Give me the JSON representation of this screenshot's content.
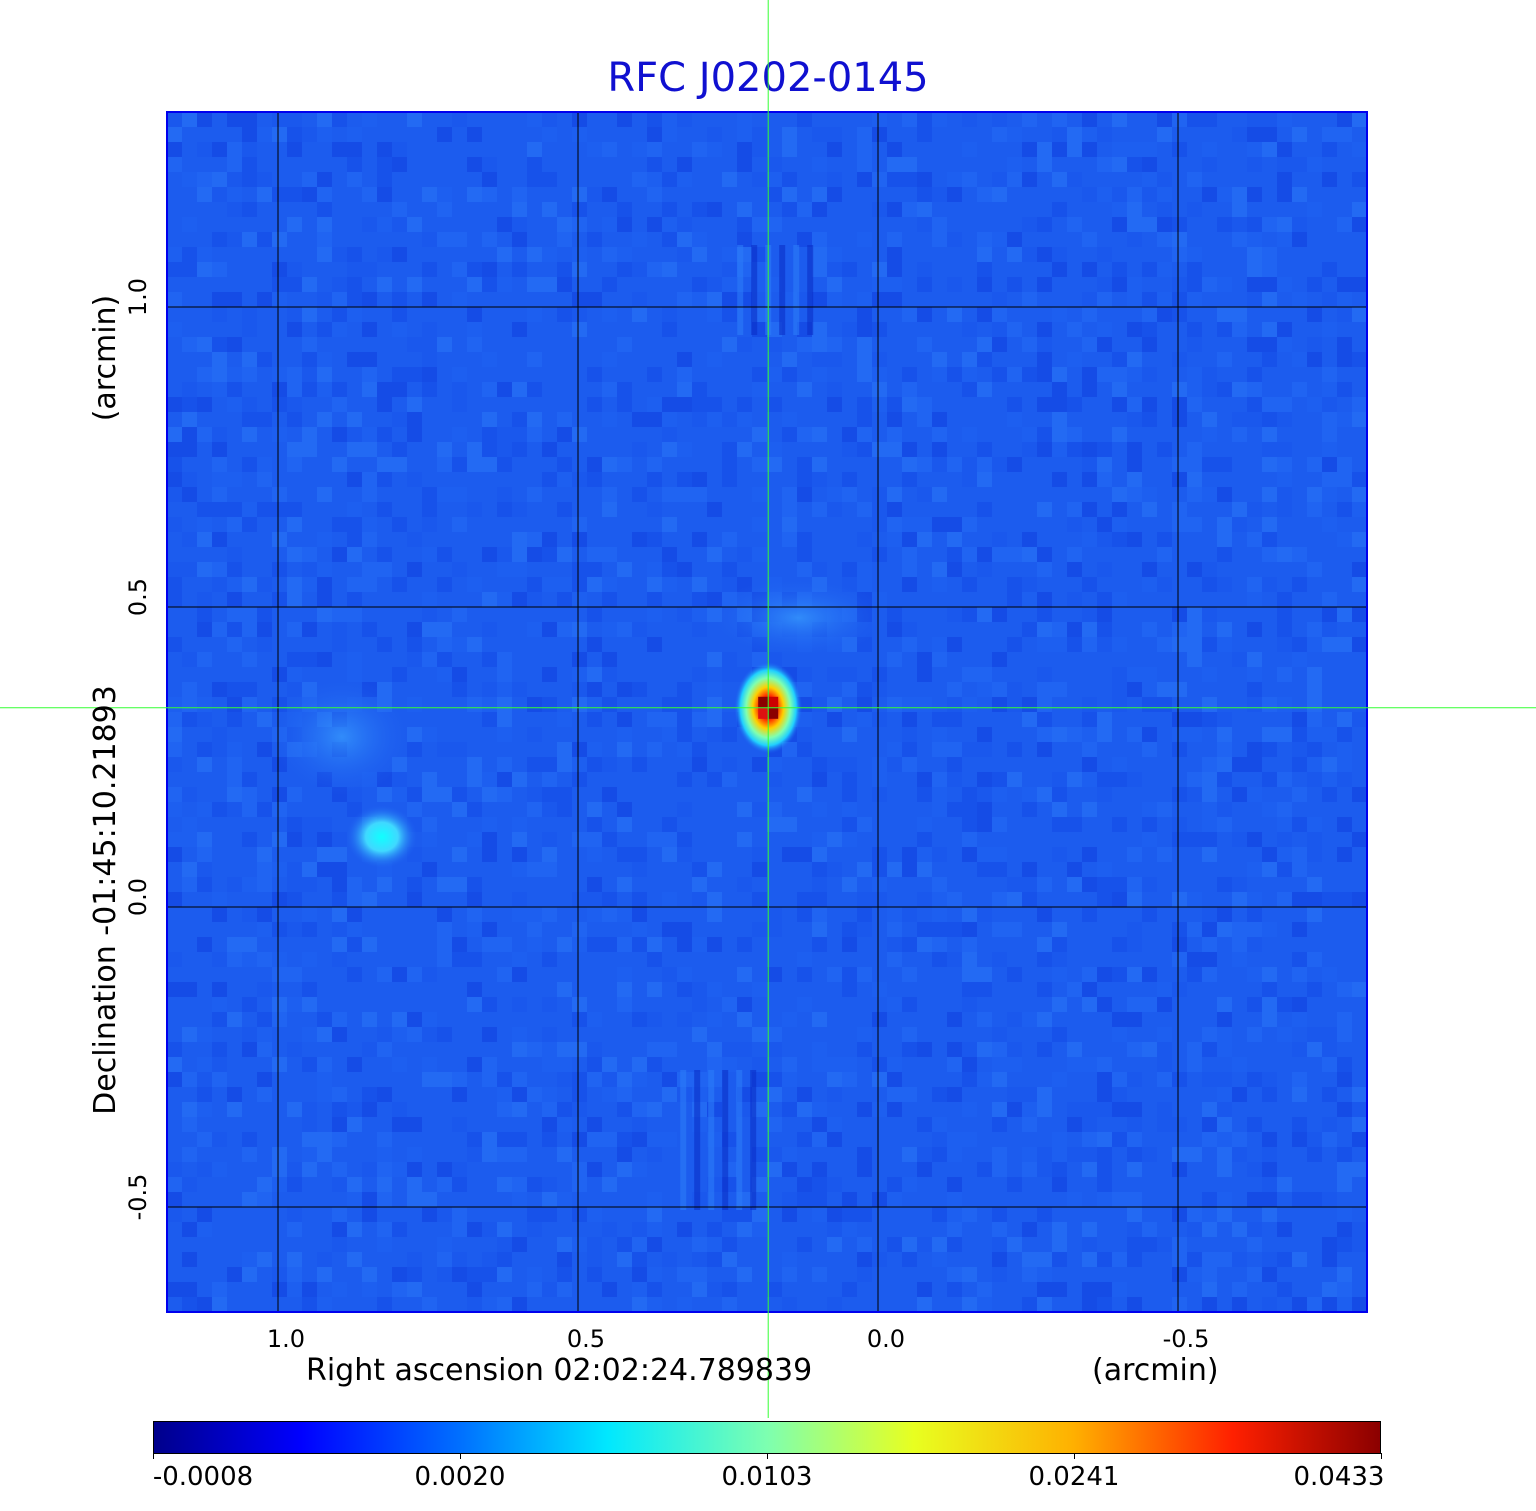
{
  "colors": {
    "title": "#1010d0",
    "crosshair": "#33ff33",
    "grid": "#000000",
    "frame": "#0000ee"
  },
  "chart_data": {
    "type": "heatmap",
    "title": "RFC J0202-0145",
    "xlabel": "Right ascension  02:02:24.789839",
    "xunit": "(arcmin)",
    "ylabel": "Declination  -01:45:10.21893",
    "yunit": "(arcmin)",
    "xlim": [
      1.185,
      -0.815
    ],
    "ylim": [
      -0.675,
      1.325
    ],
    "xticks": [
      1.0,
      0.5,
      0.0,
      -0.5
    ],
    "xtick_labels": [
      "1.0",
      "0.5",
      "0.0",
      "-0.5"
    ],
    "yticks": [
      -0.5,
      0.0,
      0.5,
      1.0
    ],
    "ytick_labels": [
      "-0.5",
      "0.0",
      "0.5",
      "1.0"
    ],
    "grid": true,
    "crosshair": {
      "x": 0.183,
      "y": 0.332
    },
    "colormap": "jet",
    "colorbar_ticks": [
      "-0.0008",
      "0.0020",
      "0.0103",
      "0.0241",
      "0.0433"
    ],
    "sources": [
      {
        "x": 0.183,
        "y": 0.332,
        "peak": 0.0433
      },
      {
        "x": 0.827,
        "y": 0.117,
        "peak": 0.0103
      }
    ]
  }
}
